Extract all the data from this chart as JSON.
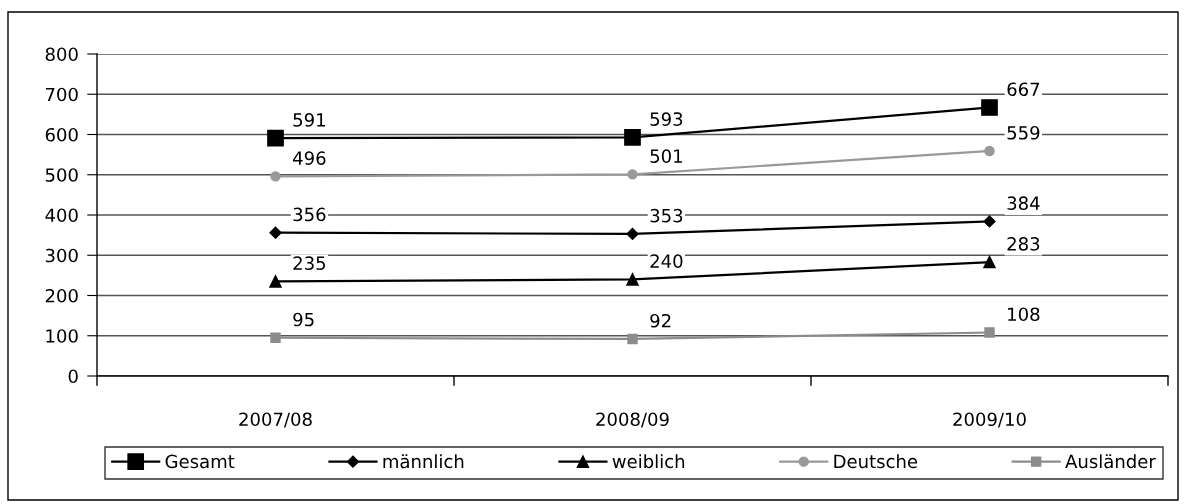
{
  "chart_data": {
    "type": "line",
    "categories": [
      "2007/08",
      "2008/09",
      "2009/10"
    ],
    "series": [
      {
        "name": "Gesamt",
        "color": "#000000",
        "marker": "square",
        "values": [
          591,
          593,
          667
        ]
      },
      {
        "name": "männlich",
        "color": "#000000",
        "marker": "diamond",
        "values": [
          356,
          353,
          384
        ]
      },
      {
        "name": "weiblich",
        "color": "#000000",
        "marker": "triangle",
        "values": [
          235,
          240,
          283
        ]
      },
      {
        "name": "Deutsche",
        "color": "#999999",
        "marker": "circle",
        "values": [
          496,
          501,
          559
        ]
      },
      {
        "name": "Ausländer",
        "color": "#8c8c8c",
        "marker": "square",
        "values": [
          95,
          92,
          108
        ]
      }
    ],
    "ylim": [
      0,
      800
    ],
    "yticks": [
      0,
      100,
      200,
      300,
      400,
      500,
      600,
      700,
      800
    ],
    "grid": "y",
    "legend": "bottom",
    "data_labels": true
  }
}
